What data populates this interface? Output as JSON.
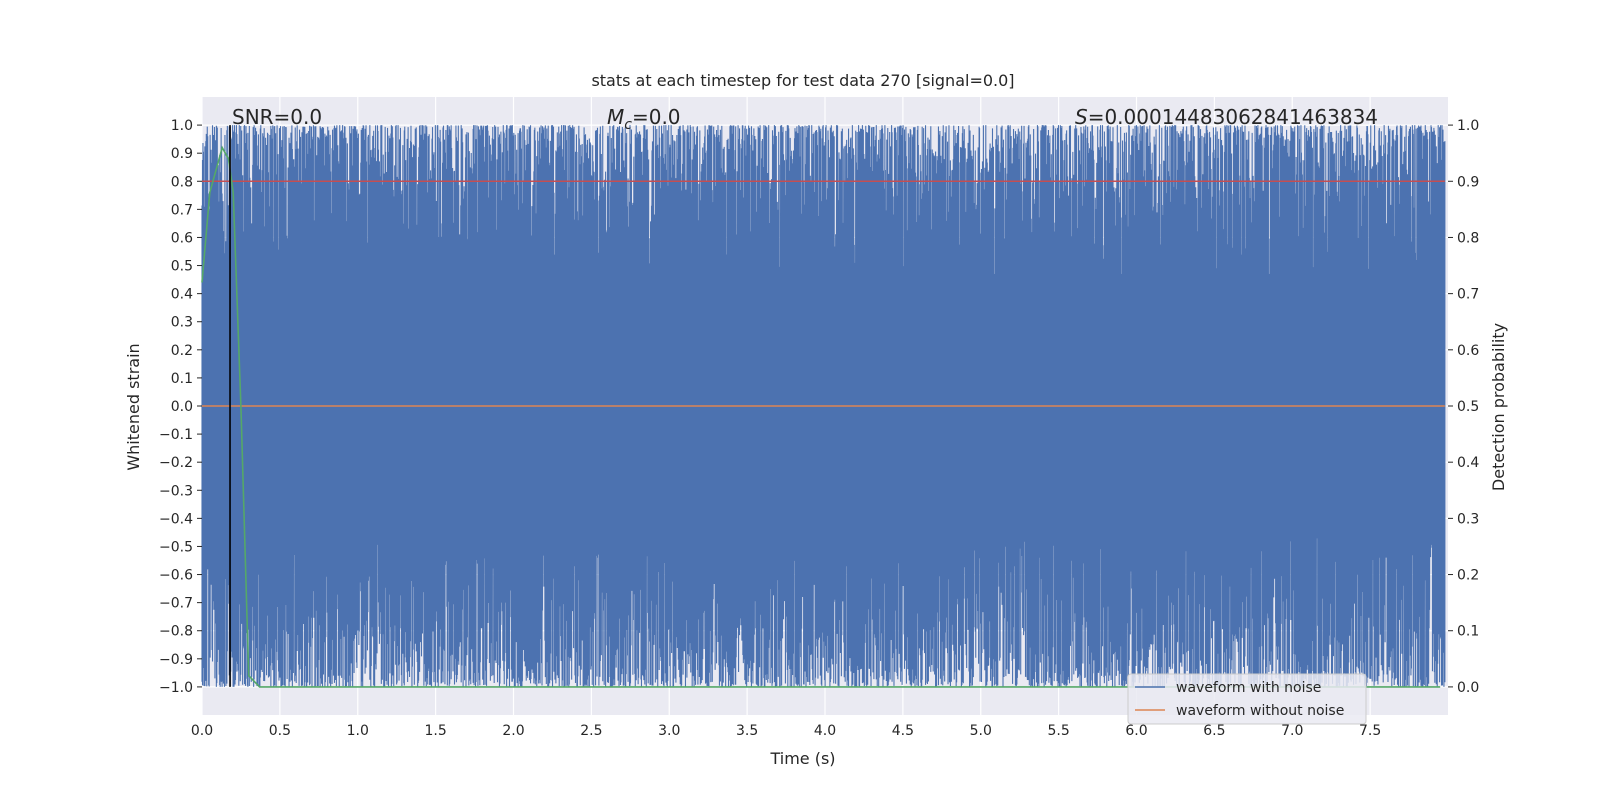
{
  "chart_data": {
    "type": "line",
    "title": "stats at each timestep for test data 270 [signal=0.0]",
    "xlabel": "Time (s)",
    "ylabel_left": "Whitened strain",
    "ylabel_right": "Detection probability",
    "xlim": [
      0.0,
      8.0
    ],
    "ylim_left": [
      -1.1,
      1.1
    ],
    "ylim_right": [
      -0.05,
      1.05
    ],
    "x_ticks": [
      0.0,
      0.5,
      1.0,
      1.5,
      2.0,
      2.5,
      3.0,
      3.5,
      4.0,
      4.5,
      5.0,
      5.5,
      6.0,
      6.5,
      7.0,
      7.5
    ],
    "x_tick_labels": [
      "0.0",
      "0.5",
      "1.0",
      "1.5",
      "2.0",
      "2.5",
      "3.0",
      "3.5",
      "4.0",
      "4.5",
      "5.0",
      "5.5",
      "6.0",
      "6.5",
      "7.0",
      "7.5"
    ],
    "y_left_ticks": [
      1.0,
      0.9,
      0.8,
      0.7,
      0.6,
      0.5,
      0.4,
      0.3,
      0.2,
      0.1,
      0.0,
      -0.1,
      -0.2,
      -0.3,
      -0.4,
      -0.5,
      -0.6,
      -0.7,
      -0.8,
      -0.9,
      -1.0
    ],
    "y_left_tick_labels": [
      "1.0",
      "0.9",
      "0.8",
      "0.7",
      "0.6",
      "0.5",
      "0.4",
      "0.3",
      "0.2",
      "0.1",
      "0.0",
      "−0.1",
      "−0.2",
      "−0.3",
      "−0.4",
      "−0.5",
      "−0.6",
      "−0.7",
      "−0.8",
      "−0.9",
      "−1.0"
    ],
    "y_right_ticks": [
      1.0,
      0.9,
      0.8,
      0.7,
      0.6,
      0.5,
      0.4,
      0.3,
      0.2,
      0.1,
      0.0
    ],
    "y_right_tick_labels": [
      "1.0",
      "0.9",
      "0.8",
      "0.7",
      "0.6",
      "0.5",
      "0.4",
      "0.3",
      "0.2",
      "0.1",
      "0.0"
    ],
    "annotations": {
      "snr": "SNR=0.0",
      "mc_symbol": "M",
      "mc_sub": "c",
      "mc_value": "=0.0",
      "s_symbol": "S",
      "s_value": "=0.00014483062841463834"
    },
    "series": [
      {
        "name": "waveform with noise",
        "color": "#4c72b0",
        "description_values": "dense noisy whitened strain spanning approximately -1.0 to 1.0 over 0–8 s",
        "amplitude_range": [
          -1.0,
          1.0
        ]
      },
      {
        "name": "waveform without noise",
        "color": "#dd8452",
        "values_constant": 0.0
      }
    ],
    "detection_probability": {
      "color": "#55a868",
      "axis": "right",
      "x": [
        0.0,
        0.05,
        0.1,
        0.13,
        0.17,
        0.2,
        0.25,
        0.3,
        0.37,
        0.5,
        1.0,
        2.0,
        3.0,
        4.0,
        5.0,
        6.0,
        7.0,
        7.95
      ],
      "y": [
        0.72,
        0.88,
        0.93,
        0.96,
        0.94,
        0.88,
        0.5,
        0.02,
        0.0,
        0.0,
        0.0,
        0.0,
        0.0,
        0.0,
        0.0,
        0.0,
        0.0,
        0.0
      ]
    },
    "threshold_line": {
      "color": "#c44e52",
      "axis": "right",
      "value": 0.9
    },
    "vertical_marker": {
      "color": "#000000",
      "x": 0.18
    },
    "legend": {
      "placement": "lower-right",
      "entries": [
        {
          "label": "waveform with noise",
          "color": "#4c72b0"
        },
        {
          "label": "waveform without noise",
          "color": "#dd8452"
        }
      ]
    },
    "grid": true,
    "background": "#eaeaf2"
  }
}
